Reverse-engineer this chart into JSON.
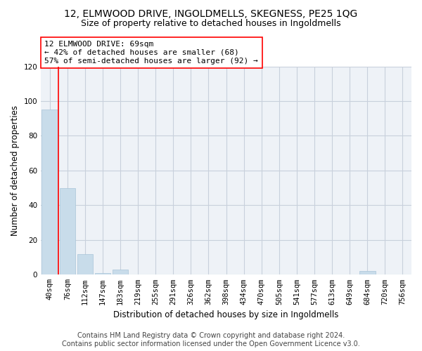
{
  "title": "12, ELMWOOD DRIVE, INGOLDMELLS, SKEGNESS, PE25 1QG",
  "subtitle": "Size of property relative to detached houses in Ingoldmells",
  "xlabel": "Distribution of detached houses by size in Ingoldmells",
  "ylabel": "Number of detached properties",
  "categories": [
    "40sqm",
    "76sqm",
    "112sqm",
    "147sqm",
    "183sqm",
    "219sqm",
    "255sqm",
    "291sqm",
    "326sqm",
    "362sqm",
    "398sqm",
    "434sqm",
    "470sqm",
    "505sqm",
    "541sqm",
    "577sqm",
    "613sqm",
    "649sqm",
    "684sqm",
    "720sqm",
    "756sqm"
  ],
  "values": [
    95,
    50,
    12,
    1,
    3,
    0,
    0,
    0,
    0,
    0,
    0,
    0,
    0,
    0,
    0,
    0,
    0,
    0,
    2,
    0,
    0
  ],
  "bar_color": "#c8dcea",
  "bar_edge_color": "#a8c4d8",
  "grid_color": "#c8d0dc",
  "background_color": "#eef2f7",
  "ylim": [
    0,
    120
  ],
  "yticks": [
    0,
    20,
    40,
    60,
    80,
    100,
    120
  ],
  "property_label": "12 ELMWOOD DRIVE: 69sqm",
  "annotation_line1": "← 42% of detached houses are smaller (68)",
  "annotation_line2": "57% of semi-detached houses are larger (92) →",
  "vline_bar_index": 1,
  "footer_line1": "Contains HM Land Registry data © Crown copyright and database right 2024.",
  "footer_line2": "Contains public sector information licensed under the Open Government Licence v3.0.",
  "title_fontsize": 10,
  "subtitle_fontsize": 9,
  "axis_label_fontsize": 8.5,
  "tick_fontsize": 7.5,
  "annotation_fontsize": 8,
  "footer_fontsize": 7
}
